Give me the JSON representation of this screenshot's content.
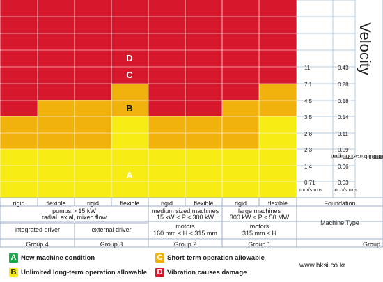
{
  "title": "Velocity",
  "frequency_note_1": "10-1000 Hz r > 600 rpm",
  "frequency_note_2": "2-1000 Hz r > 120 rpm",
  "units": {
    "mm": "mm/s rms",
    "inch": "inch/s rms"
  },
  "levels": [
    {
      "mm": "11",
      "inch": "0.43"
    },
    {
      "mm": "7.1",
      "inch": "0.28"
    },
    {
      "mm": "4.5",
      "inch": "0.18"
    },
    {
      "mm": "3.5",
      "inch": "0.14"
    },
    {
      "mm": "2.8",
      "inch": "0.11"
    },
    {
      "mm": "2.3",
      "inch": "0.09"
    },
    {
      "mm": "1.4",
      "inch": "0.06"
    },
    {
      "mm": "0.71",
      "inch": "0.03"
    }
  ],
  "zone_labels": {
    "A": "A",
    "B": "B",
    "C": "C",
    "D": "D"
  },
  "colors": {
    "A": "#1aaa4a",
    "B": "#f7ec14",
    "C": "#f2b20e",
    "D": "#d7172b"
  },
  "columns": [
    {
      "foundation": "rigid",
      "zone_tops": {
        "D": "4.5",
        "C": "3.5",
        "B": "2.3",
        "A": "bottom"
      }
    },
    {
      "foundation": "flexible",
      "zone_tops": {
        "D": "7.1",
        "C": "4.5",
        "B": "2.3",
        "A": "bottom"
      }
    },
    {
      "foundation": "rigid",
      "zone_tops": {
        "D": "7.1",
        "C": "4.5",
        "B": "2.3",
        "A": "bottom"
      }
    },
    {
      "foundation": "flexible",
      "zone_tops": {
        "D": "11",
        "C": "7.1",
        "B": "3.5",
        "A": "bottom"
      }
    },
    {
      "foundation": "rigid",
      "zone_tops": {
        "D": "4.5",
        "C": "3.5",
        "B": "2.3",
        "A": "bottom"
      }
    },
    {
      "foundation": "flexible",
      "zone_tops": {
        "D": "4.5",
        "C": "3.5",
        "B": "2.3",
        "A": "bottom"
      }
    },
    {
      "foundation": "rigid",
      "zone_tops": {
        "D": "7.1",
        "C": "4.5",
        "B": "2.3",
        "A": "bottom"
      }
    },
    {
      "foundation": "flexible",
      "zone_tops": {
        "D": "11",
        "C": "7.1",
        "B": "3.5",
        "A": "bottom"
      }
    }
  ],
  "foundation_header": "Foundation",
  "machine_type_header": "Machine Type",
  "machine_types": {
    "pumps_1": "pumps > 15 kW",
    "pumps_2": "radial, axial, mixed flow",
    "integrated": "integrated driver",
    "external": "external driver",
    "medium_1": "medium sized machines",
    "medium_2": "15 kW < P ≤ 300 kW",
    "medium_3": "motors",
    "medium_4": "160 mm ≤ H < 315 mm",
    "large_1": "large machines",
    "large_2": "300 kW < P < 50 MW",
    "large_3": "motors",
    "large_4": "315 mm ≤ H"
  },
  "groups": [
    "Group 4",
    "Group 3",
    "Group 2",
    "Group 1"
  ],
  "group_header": "Group",
  "legend": {
    "A": "New machine condition",
    "B": "Unlimited long-term operation allowable",
    "C": "Short-term operation allowable",
    "D": "Vibration causes damage"
  },
  "website": "www.hksi.co.kr"
}
